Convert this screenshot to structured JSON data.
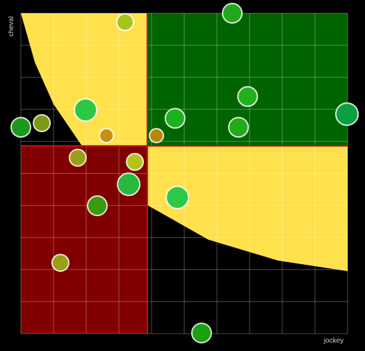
{
  "chart_data": {
    "type": "scatter",
    "x_label": "jockey",
    "y_label": "cheval",
    "xlim": [
      0,
      10
    ],
    "ylim": [
      0,
      10
    ],
    "xticks": [
      0,
      1,
      2,
      3,
      4,
      5,
      6,
      7,
      8,
      9,
      10
    ],
    "yticks": [
      0,
      1,
      2,
      3,
      4,
      5,
      6,
      7,
      8,
      9,
      10
    ],
    "grid": true,
    "thresholds": {
      "x": 3.87,
      "y": 5.86,
      "color": "#cc1010"
    },
    "quadrant_colors": {
      "top_right": "#006400",
      "bottom_left": "#800000",
      "curve_area": "#ffe14d"
    },
    "curve": {
      "x": [
        0,
        0.43,
        1.0,
        1.87,
        2.77,
        3.87,
        5.74,
        7.87,
        10
      ],
      "y": [
        10,
        8.46,
        7.16,
        5.86,
        4.77,
        4.01,
        2.93,
        2.28,
        1.95
      ]
    },
    "x": [
      3.19,
      6.47,
      6.94,
      9.98,
      6.66,
      4.72,
      4.15,
      2.62,
      1.98,
      0.64,
      0,
      1.74,
      3.49,
      3.3,
      4.79,
      2.34,
      1.21,
      5.53
    ],
    "y": [
      9.72,
      10.0,
      7.4,
      6.85,
      6.44,
      6.72,
      6.18,
      6.18,
      6.98,
      6.57,
      6.44,
      5.49,
      5.36,
      4.66,
      4.25,
      3.99,
      2.21,
      0.02
    ],
    "sizes": [
      12,
      14,
      14,
      16,
      14,
      14,
      10,
      10,
      16,
      12,
      14,
      12,
      12,
      16,
      16,
      14,
      12,
      14
    ],
    "colors": [
      "#a8c41a",
      "#22a81c",
      "#22b01e",
      "#0aa040",
      "#22aa18",
      "#1eb01e",
      "#b8860b",
      "#c8900e",
      "#2ec840",
      "#7a9a10",
      "#1a9a1a",
      "#9aa016",
      "#b0c41c",
      "#28b83c",
      "#2ec844",
      "#3a9a10",
      "#9aa016",
      "#1aa010"
    ]
  }
}
